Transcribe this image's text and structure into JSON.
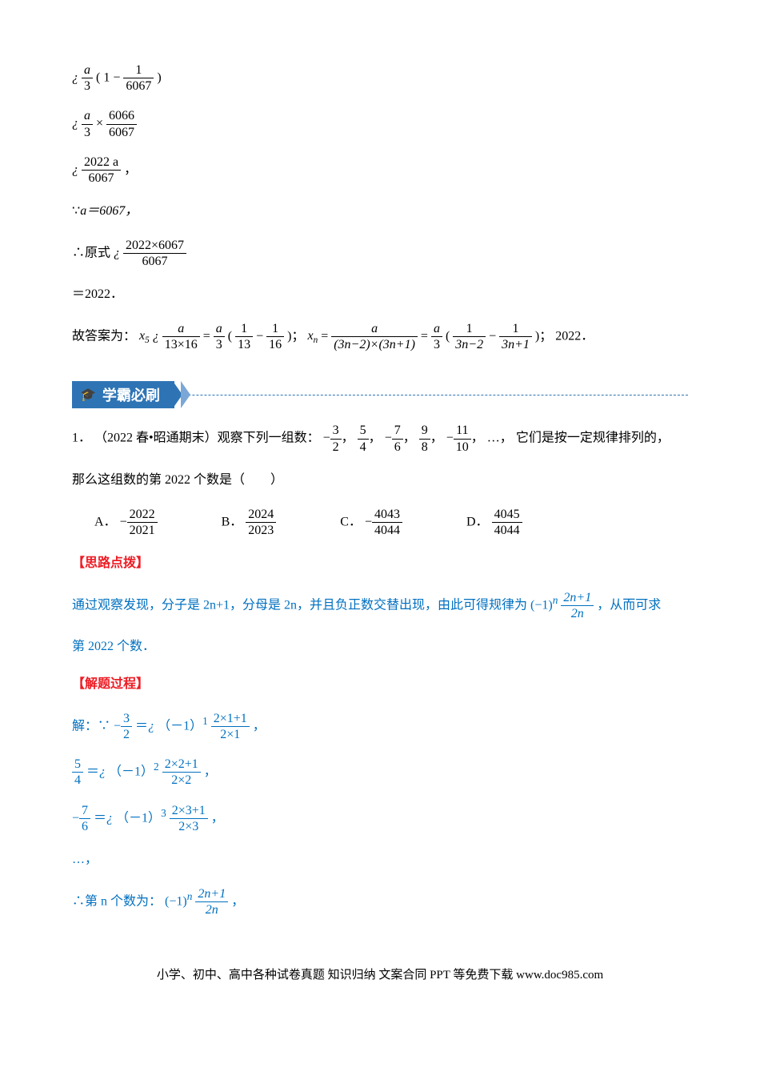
{
  "colors": {
    "red": "#ed1c24",
    "blue": "#0070c0",
    "banner": "#2e74b5",
    "text": "#000000",
    "bg": "#ffffff"
  },
  "top_work": {
    "step1": {
      "prefix": "¿",
      "a_over": "a",
      "a_under": "3",
      "paren_l": "(",
      "one": "1",
      "minus": "−",
      "inner_num": "1",
      "inner_den": "6067",
      "paren_r": ")"
    },
    "step2": {
      "prefix": "¿",
      "a_over": "a",
      "a_under": "3",
      "times": "×",
      "num": "6066",
      "den": "6067"
    },
    "step3": {
      "prefix": "¿",
      "num": "2022 a",
      "den": "6067",
      "comma": "，"
    },
    "since": {
      "sym": "∵",
      "eq": "a＝6067，"
    },
    "therefore": {
      "sym": "∴",
      "word": "原式",
      "prefix": "¿",
      "num": "2022×6067",
      "den": "6067"
    },
    "result": "＝2022．",
    "answer": {
      "lead": "故答案为：",
      "x5_lbl": "x",
      "x5_sub": "5",
      "x5_pre": "¿",
      "x5l_num": "a",
      "x5l_den": "13×16",
      "eq": "=",
      "x5r_a_num": "a",
      "x5r_a_den": "3",
      "x5r_lpar": "(",
      "x5r_f1_num": "1",
      "x5r_f1_den": "13",
      "x5r_minus": "−",
      "x5r_f2_num": "1",
      "x5r_f2_den": "16",
      "x5r_rpar": ")",
      "sep": "；",
      "xn_lbl": "x",
      "xn_sub": "n",
      "xn_eq": "=",
      "xnl_num": "a",
      "xnl_den": "(3n−2)×(3n+1)",
      "xn_eq2": "=",
      "xnr_a_num": "a",
      "xnr_a_den": "3",
      "xnr_lpar": "(",
      "xnr_f1_num": "1",
      "xnr_f1_den": "3n−2",
      "xnr_minus": "−",
      "xnr_f2_num": "1",
      "xnr_f2_den": "3n+1",
      "xnr_rpar": ")",
      "sep2": "；",
      "final": " 2022．"
    }
  },
  "banner": {
    "icon": "🎓",
    "text": "学霸必刷"
  },
  "problem": {
    "num": "1．",
    "ref": "（2022 春•昭通期末）观察下列一组数：",
    "seq": {
      "t1_sign": "−",
      "t1_num": "3",
      "t1_den": "2",
      "t2_num": "5",
      "t2_den": "4",
      "t3_sign": "−",
      "t3_num": "7",
      "t3_den": "6",
      "t4_num": "9",
      "t4_den": "8",
      "t5_sign": "−",
      "t5_num": "11",
      "t5_den": "10",
      "comma": "，",
      "dots": "…，"
    },
    "tail": "它们是按一定规律排列的，",
    "line2": "那么这组数的第 2022 个数是（　　）",
    "options": {
      "A": {
        "label": "A．",
        "sign": "−",
        "num": "2022",
        "den": "2021"
      },
      "B": {
        "label": "B．",
        "num": "2024",
        "den": "2023"
      },
      "C": {
        "label": "C．",
        "sign": "−",
        "num": "4043",
        "den": "4044"
      },
      "D": {
        "label": "D．",
        "num": "4045",
        "den": "4044"
      }
    }
  },
  "hint": {
    "h1": "【思路点拨】",
    "body_a": "通过观察发现，分子是 2n+1，分母是 2n，并且负正数交替出现，由此可得规律为",
    "rule": {
      "base": "(−1)",
      "exp": "n",
      "num": "2n+1",
      "den": "2n"
    },
    "body_b": "，从而可求",
    "line2": "第 2022 个数．"
  },
  "solution": {
    "h2": "【解题过程】",
    "lead": "解：∵",
    "s1": {
      "lsign": "−",
      "lnum": "3",
      "lden": "2",
      "eq": "＝",
      "pre": "¿",
      "b": "（－1）",
      "e": "1",
      "rnum": "2×1+1",
      "rden": "2×1",
      "comma": "，"
    },
    "s2": {
      "lnum": "5",
      "lden": "4",
      "eq": "＝",
      "pre": "¿",
      "b": "（－1）",
      "e": "2",
      "rnum": "2×2+1",
      "rden": "2×2",
      "comma": "，"
    },
    "s3": {
      "lsign": "−",
      "lnum": "7",
      "lden": "6",
      "eq": "＝",
      "pre": "¿",
      "b": "（－1）",
      "e": "3",
      "rnum": "2×3+1",
      "rden": "2×3",
      "comma": "，"
    },
    "dots": "…，",
    "concl": {
      "sym": "∴",
      "text": "第 n 个数为：",
      "base": "(−1)",
      "exp": "n",
      "num": "2n+1",
      "den": "2n",
      "comma": "，"
    }
  },
  "footer": "小学、初中、高中各种试卷真题  知识归纳  文案合同  PPT 等免费下载    www.doc985.com"
}
